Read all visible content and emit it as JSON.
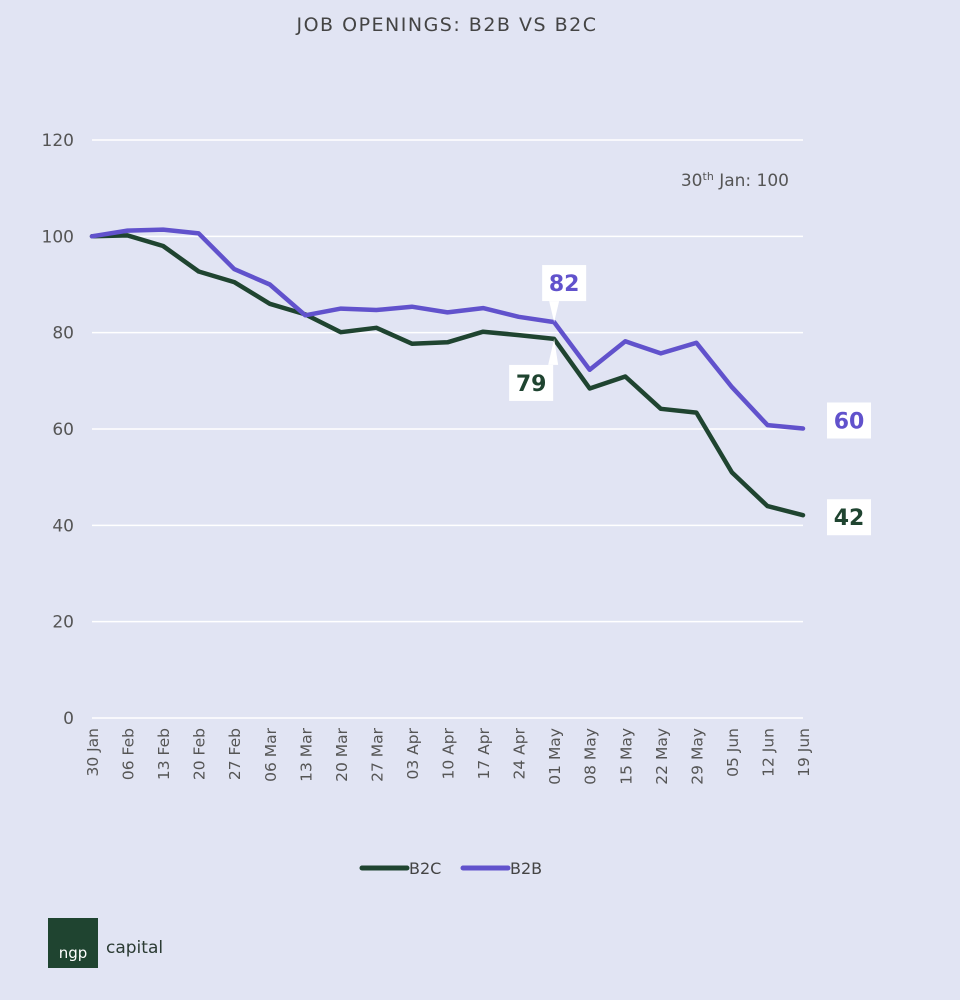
{
  "chart_data": {
    "type": "line",
    "title": "JOB OPENINGS: B2B VS B2C",
    "annotation": {
      "base": "30",
      "sup": "th",
      "rest": " Jan: 100"
    },
    "x": [
      "30 Jan",
      "06 Feb",
      "13 Feb",
      "20 Feb",
      "27 Feb",
      "06 Mar",
      "13 Mar",
      "20 Mar",
      "27 Mar",
      "03 Apr",
      "10 Apr",
      "17 Apr",
      "24 Apr",
      "01 May",
      "08 May",
      "15 May",
      "22 May",
      "29 May",
      "05 Jun",
      "12 Jun",
      "19 Jun"
    ],
    "ylim": [
      0,
      120
    ],
    "yticks": [
      0,
      20,
      40,
      60,
      80,
      100,
      120
    ],
    "grid": true,
    "legend": "bottom-center",
    "series": [
      {
        "name": "B2C",
        "color": "#1f4430",
        "values": [
          100,
          100.2,
          98,
          92.7,
          90.5,
          86,
          83.8,
          80.1,
          81,
          77.7,
          78,
          80.2,
          79.5,
          78.7,
          68.4,
          70.9,
          64.2,
          63.4,
          51,
          44,
          42.1
        ]
      },
      {
        "name": "B2B",
        "color": "#6152cc",
        "values": [
          100,
          101.2,
          101.4,
          100.6,
          93.2,
          90,
          83.6,
          85,
          84.7,
          85.4,
          84.2,
          85.1,
          83.3,
          82.2,
          72.3,
          78.2,
          75.7,
          77.9,
          68.7,
          60.8,
          60.1
        ]
      }
    ],
    "labels": [
      {
        "series": "B2B",
        "text": "82"
      },
      {
        "series": "B2C",
        "text": "79"
      },
      {
        "series": "B2B",
        "text": "60"
      },
      {
        "series": "B2C",
        "text": "42"
      }
    ]
  },
  "logo": {
    "box_text": "ngp",
    "text": "capital"
  }
}
